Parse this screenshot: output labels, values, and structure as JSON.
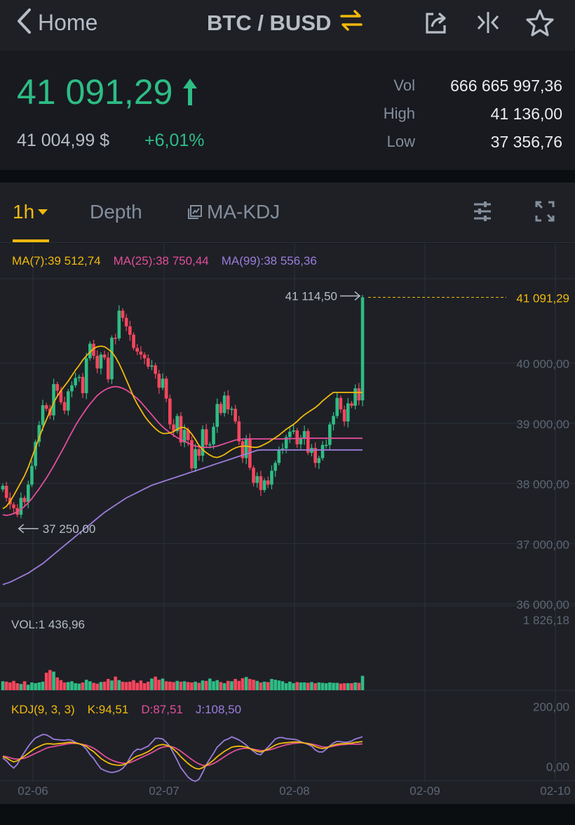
{
  "header": {
    "back_label": "Home",
    "pair": "BTC / BUSD"
  },
  "ticker": {
    "last_price": "41 091,29",
    "usd_price": "41 004,99 $",
    "change_pct": "+6,01%",
    "stats": [
      {
        "label": "Vol",
        "value": "666 665 997,36"
      },
      {
        "label": "High",
        "value": "41 136,00"
      },
      {
        "label": "Low",
        "value": "37 356,76"
      }
    ]
  },
  "tabs": {
    "interval": "1h",
    "depth": "Depth",
    "indicator": "MA-KDJ"
  },
  "legends": {
    "ma7": "MA(7):39 512,74",
    "ma25": "MA(25):38 750,44",
    "ma99": "MA(99):38 556,36",
    "vol": "VOL:1 436,96",
    "kdj": "KDJ(9, 3, 3)",
    "k": "K:94,51",
    "d": "D:87,51",
    "j": "J:108,50"
  },
  "chart_data": {
    "type": "candlestick",
    "price_ylim": [
      36000,
      41400
    ],
    "y_ticks": [
      {
        "v": 40000,
        "label": "40 000,00"
      },
      {
        "v": 39000,
        "label": "39 000,00"
      },
      {
        "v": 38000,
        "label": "38 000,00"
      },
      {
        "v": 37000,
        "label": "37 000,00"
      },
      {
        "v": 36000,
        "label": "36 000,00"
      }
    ],
    "x_ticks": [
      "02-06",
      "02-07",
      "02-08",
      "02-09",
      "02-10"
    ],
    "last_price_label": "41 091,29",
    "last_price": 41091.29,
    "high_label": "41 114,50",
    "high": 41114.5,
    "low_label": "37 250,00",
    "low": 37250,
    "vol_tick_label": "1 826,18",
    "vol_tick": 1826.18,
    "kdj_ticks": [
      {
        "v": 200,
        "label": "200,00"
      },
      {
        "v": 0,
        "label": "0,00"
      }
    ],
    "closes": [
      37960,
      37760,
      37650,
      37590,
      37480,
      37760,
      37690,
      37980,
      38290,
      38690,
      38970,
      39300,
      39240,
      39130,
      39650,
      39540,
      39350,
      39210,
      39530,
      39630,
      39750,
      39770,
      39500,
      40080,
      40320,
      40120,
      39910,
      40140,
      40090,
      39730,
      40420,
      40410,
      40870,
      40750,
      40610,
      40470,
      40250,
      40190,
      40140,
      40080,
      39940,
      39960,
      39820,
      39590,
      39740,
      39410,
      38980,
      38870,
      39120,
      38680,
      38890,
      38720,
      38250,
      38570,
      38460,
      38900,
      38640,
      38650,
      38940,
      39320,
      39170,
      39460,
      39230,
      39240,
      39030,
      38700,
      38420,
      38740,
      38260,
      38010,
      38120,
      37890,
      38050,
      37980,
      38210,
      38340,
      38550,
      38580,
      38770,
      38860,
      38880,
      38650,
      38740,
      38870,
      38510,
      38590,
      38340,
      38420,
      38640,
      38640,
      38980,
      39120,
      39420,
      39230,
      39030,
      39330,
      39290,
      39580,
      39380,
      41091
    ],
    "volumes": [
      230,
      220,
      200,
      240,
      180,
      160,
      230,
      140,
      200,
      180,
      200,
      220,
      450,
      520,
      480,
      330,
      260,
      200,
      210,
      230,
      180,
      170,
      200,
      270,
      230,
      190,
      170,
      210,
      220,
      290,
      250,
      350,
      260,
      220,
      210,
      220,
      260,
      190,
      250,
      180,
      220,
      300,
      350,
      270,
      300,
      230,
      220,
      210,
      240,
      220,
      230,
      210,
      200,
      220,
      190,
      250,
      240,
      300,
      230,
      260,
      210,
      180,
      240,
      230,
      290,
      240,
      310,
      340,
      290,
      270,
      240,
      200,
      220,
      210,
      290,
      270,
      250,
      230,
      180,
      220,
      180,
      210,
      200,
      200,
      190,
      210,
      180,
      200,
      190,
      180,
      200,
      190,
      190,
      170,
      180,
      180,
      180,
      200,
      190,
      370
    ],
    "ma7": [
      37580,
      37620,
      37700,
      37800,
      37910,
      38020,
      38130,
      38270,
      38430,
      38590,
      38760,
      38920,
      39060,
      39200,
      39340,
      39450,
      39540,
      39620,
      39700,
      39790,
      39880,
      39960,
      40050,
      40120,
      40180,
      40240,
      40270,
      40280,
      40270,
      40230,
      40180,
      40100,
      39990,
      39860,
      39720,
      39580,
      39440,
      39320,
      39220,
      39120,
      39040,
      38970,
      38910,
      38860,
      38830,
      38830,
      38840,
      38860,
      38900,
      38930,
      38930,
      38890,
      38820,
      38730,
      38630,
      38560,
      38510,
      38470,
      38440,
      38430,
      38450,
      38480,
      38520,
      38560,
      38590,
      38610,
      38620,
      38620,
      38610,
      38600,
      38600,
      38620,
      38650,
      38680,
      38720,
      38760,
      38800,
      38850,
      38900,
      38940,
      38980,
      39030,
      39090,
      39140,
      39180,
      39220,
      39260,
      39310,
      39370,
      39420,
      39470,
      39512,
      39512,
      39512,
      39512,
      39512,
      39512,
      39512,
      39512,
      39512
    ],
    "ma25": [
      37480,
      37470,
      37480,
      37500,
      37530,
      37570,
      37620,
      37680,
      37750,
      37830,
      37910,
      38000,
      38090,
      38190,
      38290,
      38400,
      38510,
      38620,
      38740,
      38850,
      38960,
      39060,
      39150,
      39240,
      39320,
      39390,
      39460,
      39510,
      39550,
      39580,
      39600,
      39610,
      39600,
      39580,
      39550,
      39510,
      39460,
      39410,
      39350,
      39280,
      39210,
      39140,
      39070,
      39000,
      38940,
      38890,
      38840,
      38800,
      38760,
      38730,
      38700,
      38670,
      38640,
      38620,
      38610,
      38600,
      38600,
      38600,
      38610,
      38620,
      38640,
      38660,
      38680,
      38700,
      38720,
      38730,
      38740,
      38740,
      38740,
      38740,
      38740,
      38740,
      38740,
      38740,
      38740,
      38740,
      38740,
      38740,
      38742,
      38744,
      38746,
      38748,
      38749,
      38750,
      38750,
      38750,
      38750,
      38750,
      38750,
      38750,
      38750,
      38750,
      38750,
      38750,
      38750,
      38750,
      38750,
      38750,
      38750,
      38750
    ],
    "ma99": [
      36320,
      36340,
      36360,
      36390,
      36420,
      36450,
      36480,
      36510,
      36550,
      36590,
      36630,
      36670,
      36720,
      36770,
      36820,
      36870,
      36920,
      36970,
      37020,
      37070,
      37120,
      37170,
      37220,
      37270,
      37320,
      37370,
      37420,
      37470,
      37520,
      37560,
      37600,
      37640,
      37680,
      37720,
      37760,
      37790,
      37820,
      37850,
      37880,
      37910,
      37940,
      37970,
      37990,
      38010,
      38030,
      38050,
      38070,
      38090,
      38110,
      38130,
      38150,
      38170,
      38190,
      38210,
      38230,
      38250,
      38270,
      38290,
      38310,
      38330,
      38350,
      38370,
      38390,
      38410,
      38430,
      38450,
      38470,
      38490,
      38510,
      38530,
      38550,
      38556,
      38556,
      38556,
      38556,
      38556,
      38556,
      38556,
      38556,
      38556,
      38556,
      38556,
      38556,
      38556,
      38556,
      38556,
      38556,
      38556,
      38556,
      38556,
      38556,
      38556,
      38556,
      38556,
      38556,
      38556,
      38556,
      38556,
      38556,
      38556
    ],
    "kdj_k": [
      50,
      46,
      40,
      35,
      38,
      45,
      52,
      60,
      68,
      75,
      80,
      85,
      88,
      88,
      87,
      88,
      89,
      90,
      92,
      92,
      90,
      88,
      85,
      80,
      72,
      65,
      55,
      45,
      38,
      32,
      28,
      26,
      25,
      26,
      30,
      38,
      46,
      52,
      55,
      60,
      65,
      72,
      80,
      84,
      86,
      84,
      80,
      72,
      62,
      50,
      40,
      30,
      22,
      16,
      14,
      18,
      25,
      32,
      40,
      50,
      58,
      66,
      72,
      78,
      80,
      81,
      80,
      78,
      74,
      70,
      66,
      64,
      68,
      72,
      78,
      84,
      88,
      90,
      91,
      92,
      93,
      93,
      92,
      90,
      88,
      85,
      80,
      76,
      74,
      76,
      80,
      84,
      87,
      88,
      88,
      89,
      90,
      92,
      93,
      94.51
    ],
    "kdj_d": [
      52,
      50,
      47,
      44,
      43,
      44,
      46,
      50,
      55,
      60,
      65,
      70,
      75,
      78,
      80,
      82,
      84,
      86,
      88,
      89,
      89,
      88,
      86,
      84,
      80,
      75,
      68,
      60,
      52,
      45,
      40,
      36,
      33,
      31,
      31,
      33,
      37,
      42,
      47,
      52,
      57,
      62,
      68,
      74,
      78,
      80,
      80,
      78,
      73,
      66,
      58,
      50,
      42,
      35,
      29,
      25,
      24,
      26,
      30,
      36,
      43,
      50,
      57,
      63,
      68,
      72,
      74,
      75,
      74,
      72,
      70,
      68,
      68,
      69,
      72,
      75,
      79,
      82,
      85,
      87,
      89,
      90,
      91,
      90,
      89,
      87,
      85,
      82,
      79,
      78,
      79,
      81,
      83,
      85,
      86,
      87,
      87,
      87,
      87,
      87.51
    ],
    "kdj_j": [
      46,
      38,
      26,
      17,
      28,
      47,
      64,
      80,
      94,
      105,
      110,
      115,
      114,
      108,
      101,
      100,
      99,
      98,
      100,
      98,
      92,
      88,
      83,
      72,
      56,
      45,
      29,
      15,
      10,
      6,
      4,
      6,
      9,
      16,
      28,
      48,
      64,
      72,
      71,
      76,
      81,
      92,
      104,
      104,
      102,
      92,
      80,
      60,
      40,
      18,
      4,
      -10,
      -18,
      -22,
      -16,
      4,
      27,
      44,
      60,
      78,
      88,
      98,
      102,
      108,
      104,
      99,
      92,
      84,
      74,
      66,
      58,
      56,
      68,
      78,
      90,
      102,
      106,
      106,
      103,
      102,
      101,
      99,
      94,
      90,
      86,
      81,
      70,
      64,
      64,
      72,
      82,
      90,
      95,
      94,
      92,
      93,
      96,
      102,
      105,
      108.5
    ]
  }
}
